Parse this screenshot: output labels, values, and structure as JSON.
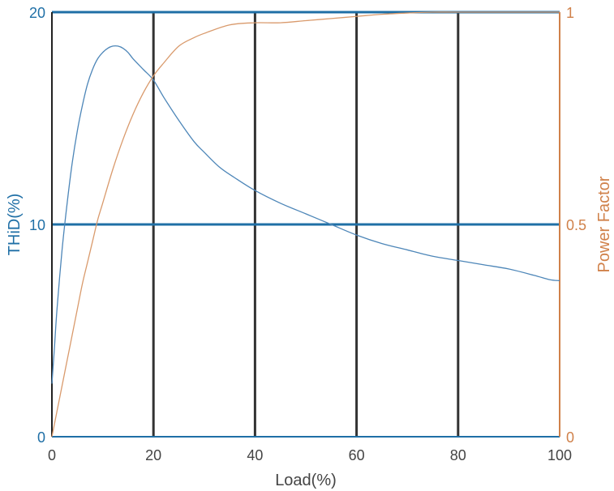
{
  "colors": {
    "left_axis": "#1f6fa6",
    "right_axis": "#d0814a",
    "thid_line": "#4d86b8",
    "pf_line": "#d99a6c",
    "vertical_grid": "#333333",
    "horizontal_grid": "#1f6fa6"
  },
  "chart_data": {
    "type": "line",
    "xlabel": "Load(%)",
    "ylabel_left": "THiD(%)",
    "ylabel_right": "Power Factor",
    "xlim": [
      0,
      100
    ],
    "ylim_left": [
      0,
      20
    ],
    "ylim_right": [
      0,
      1
    ],
    "x_ticks": [
      "0",
      "20",
      "40",
      "60",
      "80",
      "100"
    ],
    "y_left_ticks": [
      "0",
      "10",
      "20"
    ],
    "y_right_ticks": [
      "0",
      "0.5",
      "1"
    ],
    "grid": true,
    "series": [
      {
        "axis": "left",
        "x": [
          0,
          0.5,
          1,
          2,
          3,
          4,
          5,
          6,
          7,
          8,
          9,
          10,
          11,
          12,
          13,
          14,
          15,
          16,
          18,
          20,
          22,
          25,
          28,
          30,
          33,
          36,
          40,
          45,
          50,
          55,
          60,
          65,
          70,
          75,
          80,
          85,
          90,
          95,
          98,
          100
        ],
        "y": [
          2.5,
          4.2,
          6.0,
          8.8,
          11.0,
          12.9,
          14.4,
          15.6,
          16.6,
          17.3,
          17.8,
          18.1,
          18.3,
          18.4,
          18.4,
          18.3,
          18.1,
          17.8,
          17.3,
          16.8,
          16.0,
          14.9,
          13.9,
          13.4,
          12.7,
          12.2,
          11.6,
          11.0,
          10.5,
          10.0,
          9.5,
          9.1,
          8.8,
          8.5,
          8.3,
          8.1,
          7.9,
          7.6,
          7.4,
          7.35
        ]
      },
      {
        "axis": "right",
        "x": [
          0,
          1,
          2,
          3,
          4,
          5,
          6,
          7,
          8,
          9,
          10,
          12,
          14,
          16,
          18,
          20,
          22,
          25,
          28,
          30,
          35,
          40,
          45,
          50,
          55,
          60,
          65,
          70,
          75,
          80,
          90,
          100
        ],
        "y": [
          0.0,
          0.06,
          0.12,
          0.18,
          0.24,
          0.3,
          0.36,
          0.41,
          0.46,
          0.51,
          0.55,
          0.63,
          0.7,
          0.76,
          0.81,
          0.85,
          0.88,
          0.92,
          0.94,
          0.95,
          0.97,
          0.975,
          0.975,
          0.98,
          0.985,
          0.99,
          0.995,
          0.998,
          1.0,
          1.0,
          1.0,
          1.0
        ]
      }
    ]
  }
}
